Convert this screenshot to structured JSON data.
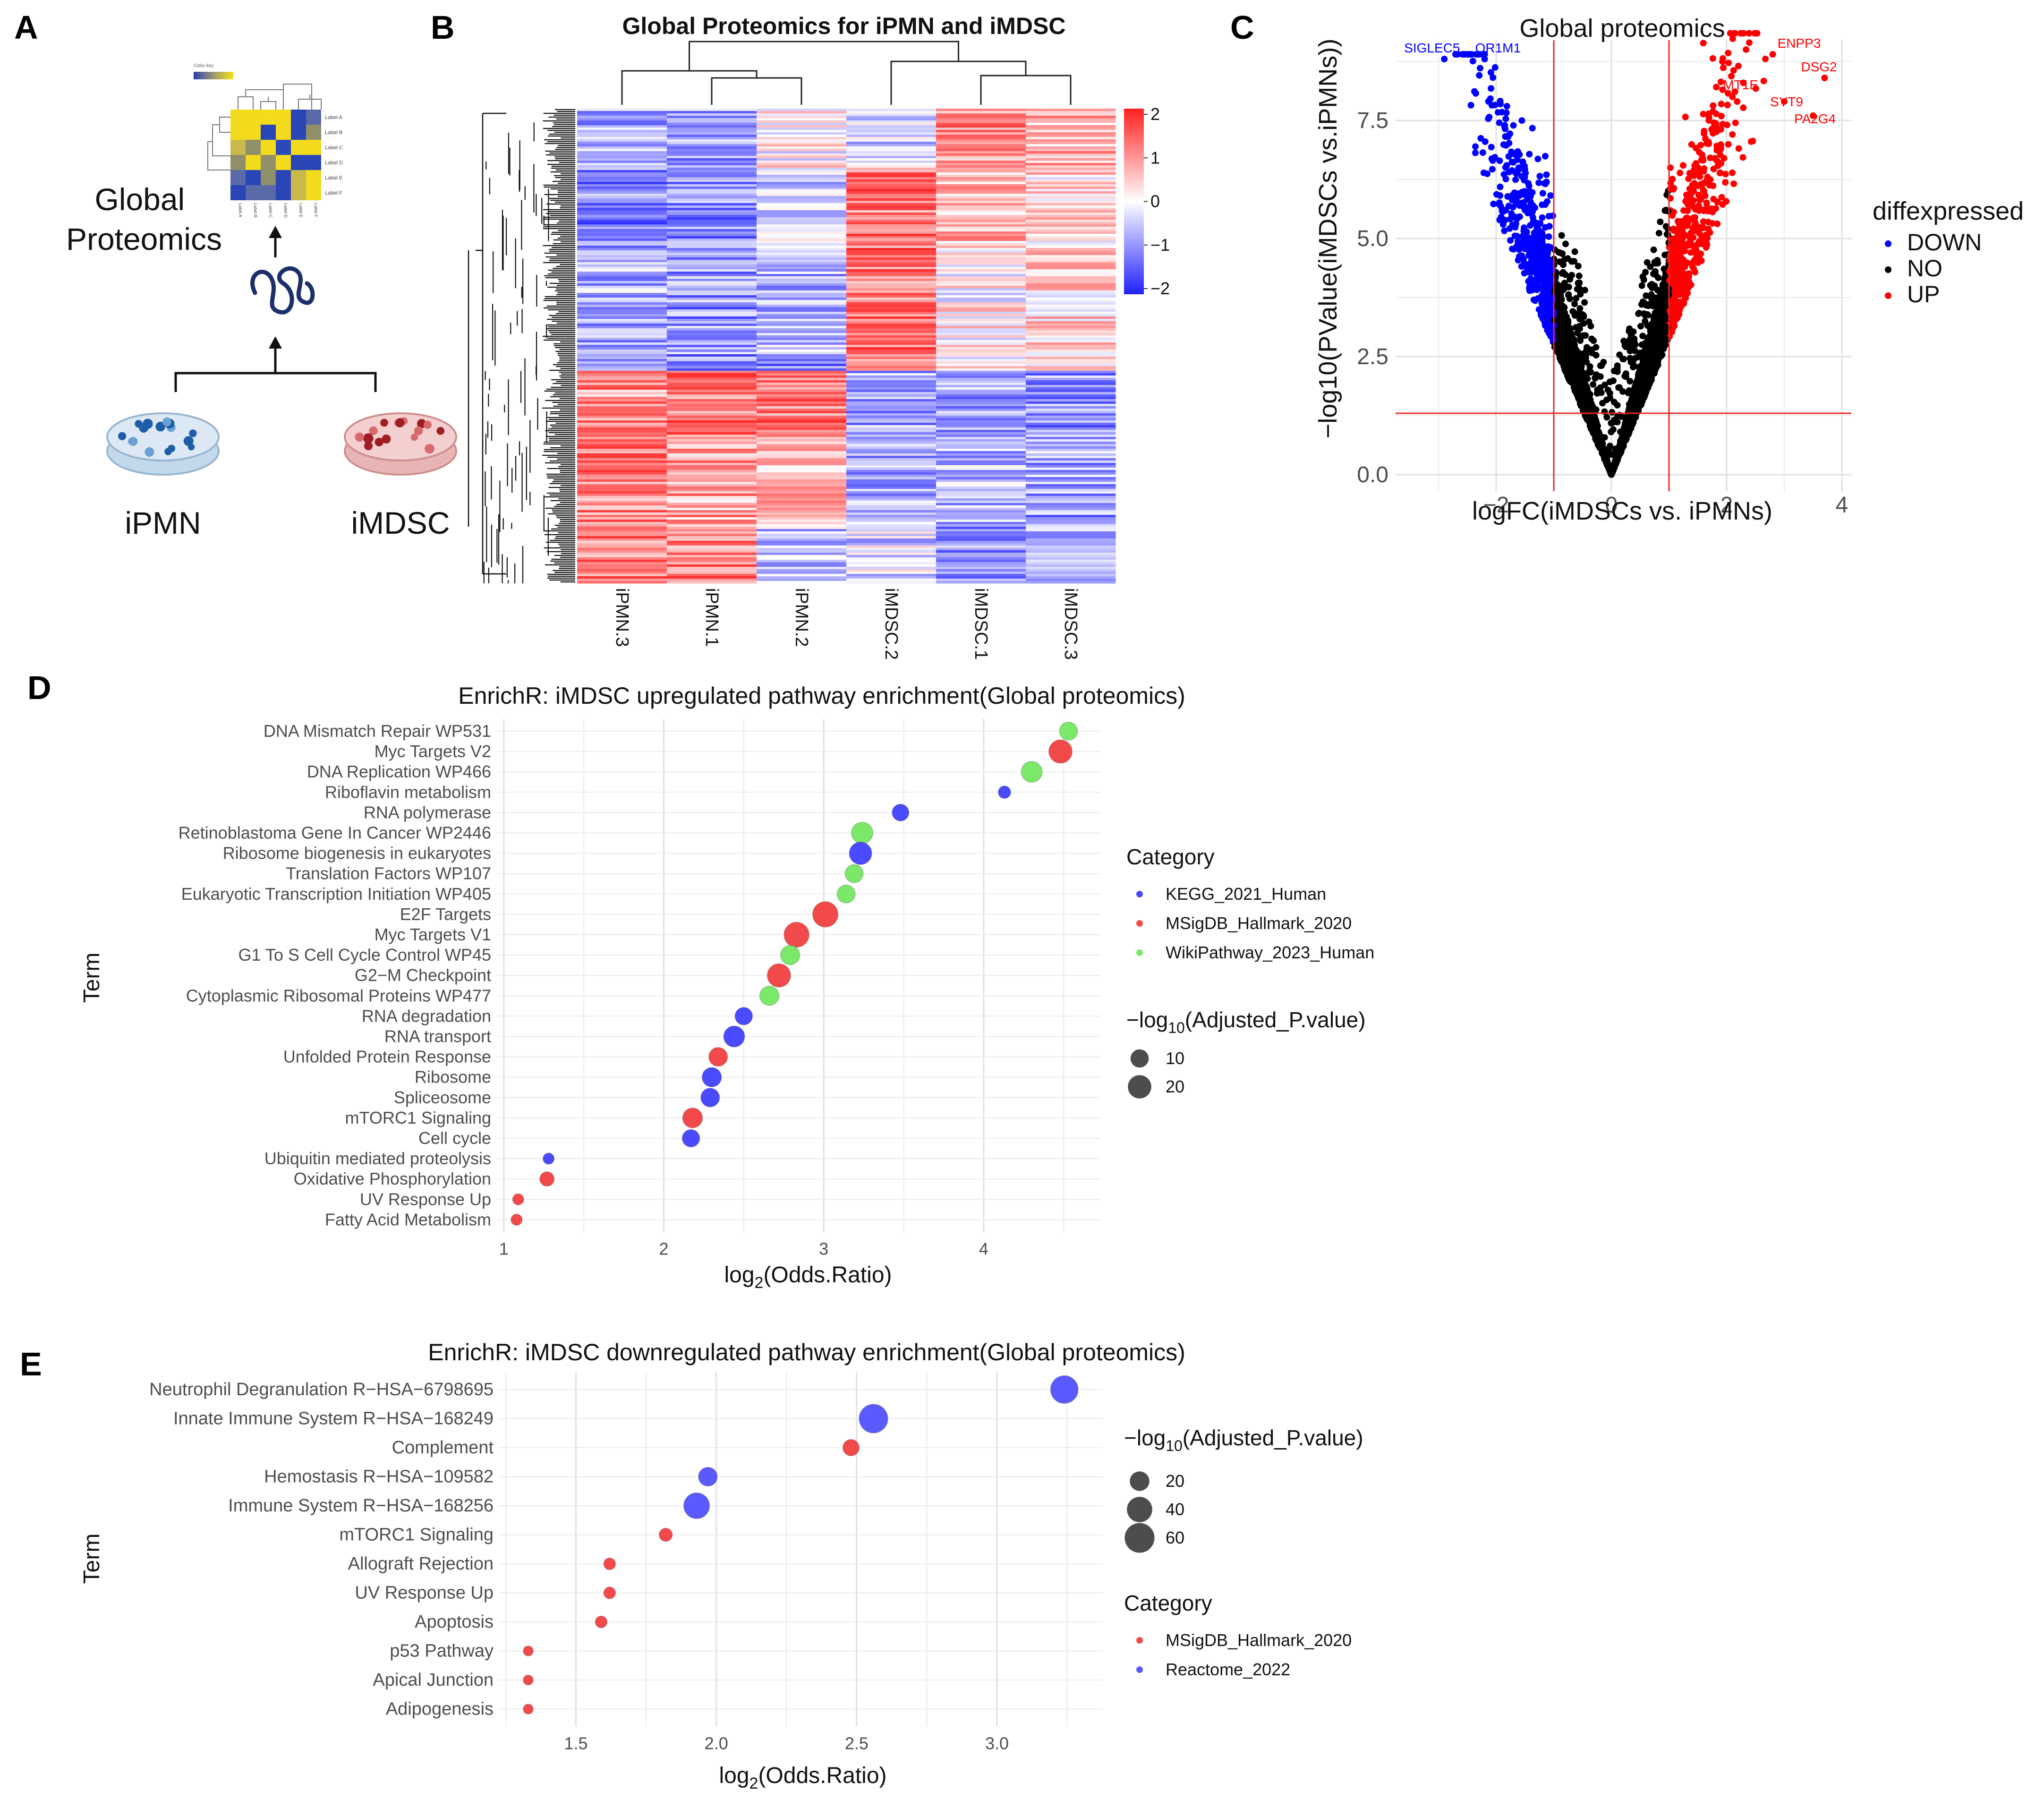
{
  "panels": {
    "a": {
      "label": "A",
      "title": "Global\nProteomics",
      "left_sample": "iPMN",
      "right_sample": "iMDSC",
      "heatmap_icon": {
        "key": "Color key",
        "labels": [
          "Label A",
          "Label B",
          "Label C",
          "Label D",
          "Label E",
          "Label F"
        ]
      }
    },
    "b": {
      "label": "B",
      "title": "Global Proteomics for iPMN and iMDSC",
      "columns": [
        "iPMN.3",
        "iPMN.1",
        "iPMN.2",
        "iMDSC.2",
        "iMDSC.1",
        "iMDSC.3"
      ],
      "scale_ticks": [
        "2",
        "1",
        "0",
        "−1",
        "−2"
      ]
    },
    "c": {
      "label": "C",
      "title": "Global proteomics",
      "xlabel": "logFC(iMDSCs vs. iPMNs)",
      "ylabel": "−log10(PValue(iMDSCs vs.iPMNs))",
      "xticks": [
        "−2",
        "0",
        "2",
        "4"
      ],
      "yticks": [
        "0.0",
        "2.5",
        "5.0",
        "7.5"
      ],
      "legend_title": "diffexpressed",
      "legend": [
        "DOWN",
        "NO",
        "UP"
      ],
      "annotations": [
        "SIGLEC5",
        "OR1M1",
        "ENPP3",
        "DSG2",
        "MT1E",
        "SYT9",
        "PA2G4"
      ]
    },
    "d": {
      "label": "D",
      "title": "EnrichR: iMDSC upregulated pathway enrichment(Global proteomics)",
      "ylabel": "Term",
      "xlabel_main": "log",
      "xlabel_sub": "2",
      "xlabel_rest": "(Odds.Ratio)",
      "xticks": [
        "1",
        "2",
        "3",
        "4"
      ],
      "legend_category_title": "Category",
      "legend_size_title": "−log",
      "legend_size_sub": "10",
      "legend_size_rest": "(Adjusted_P.value)",
      "legend_categories": [
        "KEGG_2021_Human",
        "MSigDB_Hallmark_2020",
        "WikiPathway_2023_Human"
      ],
      "legend_sizes": [
        "10",
        "20"
      ]
    },
    "e": {
      "label": "E",
      "title": "EnrichR: iMDSC downregulated pathway enrichment(Global proteomics)",
      "ylabel": "Term",
      "xlabel_main": "log",
      "xlabel_sub": "2",
      "xlabel_rest": "(Odds.Ratio)",
      "xticks": [
        "1.5",
        "2.0",
        "2.5",
        "3.0"
      ],
      "legend_category_title": "Category",
      "legend_size_title": "−log",
      "legend_size_sub": "10",
      "legend_size_rest": "(Adjusted_P.value)",
      "legend_categories": [
        "MSigDB_Hallmark_2020",
        "Reactome_2022"
      ],
      "legend_sizes": [
        "20",
        "40",
        "60"
      ]
    }
  },
  "colors": {
    "kegg": "#4a4aff",
    "msigdb": "#f24a4a",
    "wiki": "#7be86a",
    "reactome": "#5a5aff",
    "down": "#0000ff",
    "no": "#000000",
    "up": "#ff0000",
    "heat_high": "#ff2a2a",
    "heat_low": "#2a2aff"
  },
  "chart_data": [
    {
      "panel": "C",
      "type": "scatter",
      "title": "Global proteomics",
      "xlabel": "logFC(iMDSCs vs. iPMNs)",
      "ylabel": "-log10(PValue(iMDSCs vs.iPMNs))",
      "xlim": [
        -3.5,
        4
      ],
      "ylim": [
        0,
        9
      ],
      "thresholds": {
        "logFC": [
          -1,
          1
        ],
        "neglog10p": 1.3
      },
      "labeled_points": [
        {
          "label": "SIGLEC5",
          "x": -2.9,
          "y": 8.8,
          "group": "DOWN"
        },
        {
          "label": "OR1M1",
          "x": -2.2,
          "y": 8.8,
          "group": "DOWN"
        },
        {
          "label": "ENPP3",
          "x": 2.8,
          "y": 8.9,
          "group": "UP"
        },
        {
          "label": "DSG2",
          "x": 3.7,
          "y": 8.4,
          "group": "UP"
        },
        {
          "label": "MT1E",
          "x": 2.1,
          "y": 8.0,
          "group": "UP"
        },
        {
          "label": "SYT9",
          "x": 3.0,
          "y": 7.9,
          "group": "UP"
        },
        {
          "label": "PA2G4",
          "x": 3.5,
          "y": 7.6,
          "group": "UP"
        }
      ]
    },
    {
      "panel": "D",
      "type": "scatter",
      "title": "EnrichR: iMDSC upregulated pathway enrichment(Global proteomics)",
      "xlabel": "log2(Odds.Ratio)",
      "ylabel": "Term",
      "xlim": [
        0.98,
        4.7
      ],
      "points": [
        {
          "term": "DNA Mismatch Repair WP531",
          "x": 4.53,
          "size": 10,
          "category": "WikiPathway_2023_Human"
        },
        {
          "term": "Myc Targets V2",
          "x": 4.48,
          "size": 20,
          "category": "MSigDB_Hallmark_2020"
        },
        {
          "term": "DNA Replication WP466",
          "x": 4.3,
          "size": 15,
          "category": "WikiPathway_2023_Human"
        },
        {
          "term": "Riboflavin metabolism",
          "x": 4.13,
          "size": 3,
          "category": "KEGG_2021_Human"
        },
        {
          "term": "RNA polymerase",
          "x": 3.48,
          "size": 8,
          "category": "KEGG_2021_Human"
        },
        {
          "term": "Retinoblastoma Gene In Cancer WP2446",
          "x": 3.24,
          "size": 16,
          "category": "WikiPathway_2023_Human"
        },
        {
          "term": "Ribosome biogenesis in eukaryotes",
          "x": 3.23,
          "size": 18,
          "category": "KEGG_2021_Human"
        },
        {
          "term": "Translation Factors WP107",
          "x": 3.19,
          "size": 10,
          "category": "WikiPathway_2023_Human"
        },
        {
          "term": "Eukaryotic Transcription Initiation WP405",
          "x": 3.14,
          "size": 10,
          "category": "WikiPathway_2023_Human"
        },
        {
          "term": "E2F Targets",
          "x": 3.01,
          "size": 25,
          "category": "MSigDB_Hallmark_2020"
        },
        {
          "term": "Myc Targets V1",
          "x": 2.83,
          "size": 24,
          "category": "MSigDB_Hallmark_2020"
        },
        {
          "term": "G1 To S Cell Cycle Control WP45",
          "x": 2.79,
          "size": 12,
          "category": "WikiPathway_2023_Human"
        },
        {
          "term": "G2−M Checkpoint",
          "x": 2.72,
          "size": 20,
          "category": "MSigDB_Hallmark_2020"
        },
        {
          "term": "Cytoplasmic Ribosomal Proteins WP477",
          "x": 2.66,
          "size": 12,
          "category": "WikiPathway_2023_Human"
        },
        {
          "term": "RNA degradation",
          "x": 2.5,
          "size": 9,
          "category": "KEGG_2021_Human"
        },
        {
          "term": "RNA transport",
          "x": 2.44,
          "size": 15,
          "category": "KEGG_2021_Human"
        },
        {
          "term": "Unfolded Protein Response",
          "x": 2.34,
          "size": 11,
          "category": "MSigDB_Hallmark_2020"
        },
        {
          "term": "Ribosome",
          "x": 2.3,
          "size": 12,
          "category": "KEGG_2021_Human"
        },
        {
          "term": "Spliceosome",
          "x": 2.29,
          "size": 11,
          "category": "KEGG_2021_Human"
        },
        {
          "term": "mTORC1 Signaling",
          "x": 2.18,
          "size": 13,
          "category": "MSigDB_Hallmark_2020"
        },
        {
          "term": "Cell cycle",
          "x": 2.17,
          "size": 9,
          "category": "KEGG_2021_Human"
        },
        {
          "term": "Ubiquitin mediated proteolysis",
          "x": 1.28,
          "size": 2,
          "category": "KEGG_2021_Human"
        },
        {
          "term": "Oxidative Phosphorylation",
          "x": 1.27,
          "size": 5,
          "category": "MSigDB_Hallmark_2020"
        },
        {
          "term": "UV Response Up",
          "x": 1.09,
          "size": 2,
          "category": "MSigDB_Hallmark_2020"
        },
        {
          "term": "Fatty Acid Metabolism",
          "x": 1.08,
          "size": 2,
          "category": "MSigDB_Hallmark_2020"
        }
      ]
    },
    {
      "panel": "E",
      "type": "scatter",
      "title": "EnrichR: iMDSC downregulated pathway enrichment(Global proteomics)",
      "xlabel": "log2(Odds.Ratio)",
      "ylabel": "Term",
      "xlim": [
        1.24,
        3.36
      ],
      "points": [
        {
          "term": "Neutrophil Degranulation R−HSA−6798695",
          "x": 3.24,
          "size": 50,
          "category": "Reactome_2022"
        },
        {
          "term": "Innate Immune System R−HSA−168249",
          "x": 2.56,
          "size": 55,
          "category": "Reactome_2022"
        },
        {
          "term": "Complement",
          "x": 2.48,
          "size": 12,
          "category": "MSigDB_Hallmark_2020"
        },
        {
          "term": "Hemostasis R−HSA−109582",
          "x": 1.97,
          "size": 18,
          "category": "Reactome_2022"
        },
        {
          "term": "Immune System R−HSA−168256",
          "x": 1.93,
          "size": 42,
          "category": "Reactome_2022"
        },
        {
          "term": "mTORC1 Signaling",
          "x": 1.82,
          "size": 6,
          "category": "MSigDB_Hallmark_2020"
        },
        {
          "term": "Allograft Rejection",
          "x": 1.62,
          "size": 4,
          "category": "MSigDB_Hallmark_2020"
        },
        {
          "term": "UV Response Up",
          "x": 1.62,
          "size": 4,
          "category": "MSigDB_Hallmark_2020"
        },
        {
          "term": "Apoptosis",
          "x": 1.59,
          "size": 4,
          "category": "MSigDB_Hallmark_2020"
        },
        {
          "term": "p53 Pathway",
          "x": 1.33,
          "size": 2,
          "category": "MSigDB_Hallmark_2020"
        },
        {
          "term": "Apical Junction",
          "x": 1.33,
          "size": 2,
          "category": "MSigDB_Hallmark_2020"
        },
        {
          "term": "Adipogenesis",
          "x": 1.33,
          "size": 2,
          "category": "MSigDB_Hallmark_2020"
        }
      ]
    }
  ]
}
